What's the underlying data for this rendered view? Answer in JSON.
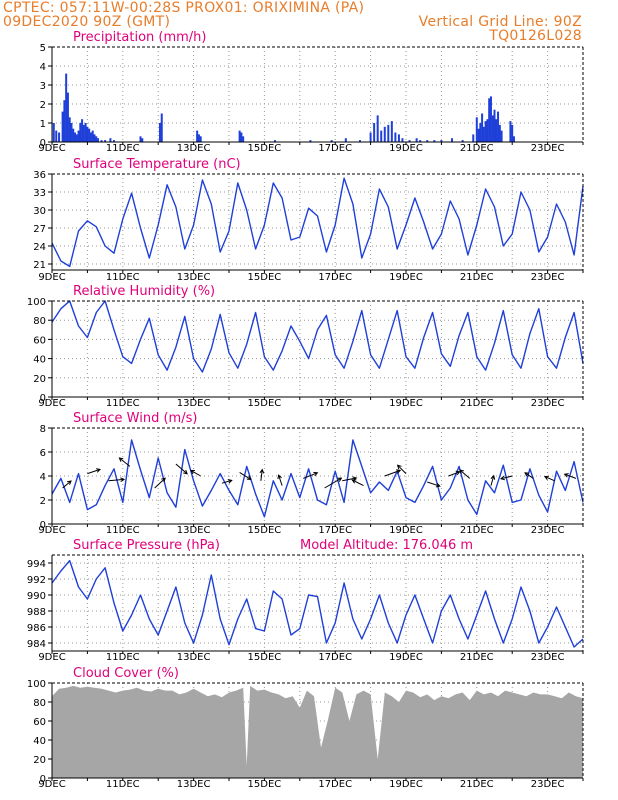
{
  "header": {
    "line1_left": "CPTEC:   057:11W-00:28S   PROX01: ORIXIMINA (PA)",
    "line2_left": "09DEC2020 90Z (GMT)",
    "line2_right": "Vertical Grid Line: 90Z",
    "line3_right": "TQ0126L028",
    "model_altitude": "Model Altitude: 176.046 m"
  },
  "colors": {
    "header": "#e87d2a",
    "panel_title": "#e0007a",
    "series": "#1f3fd9",
    "cloud": "#a6a6a6",
    "grid": "#9a9a9a"
  },
  "x_tick_labels": [
    "9DEC",
    "11DEC",
    "13DEC",
    "15DEC",
    "17DEC",
    "19DEC",
    "21DEC",
    "23DEC"
  ],
  "chart_data": [
    {
      "name": "precip",
      "type": "bar",
      "title": "Precipitation (mm/h)",
      "x_range_days": [
        9,
        24
      ],
      "ylim": [
        0,
        5
      ],
      "yticks": [
        0,
        1,
        2,
        3,
        4,
        5
      ],
      "grid": true,
      "x": [
        9.05,
        9.12,
        9.2,
        9.3,
        9.35,
        9.4,
        9.45,
        9.5,
        9.55,
        9.6,
        9.65,
        9.7,
        9.75,
        9.8,
        9.85,
        9.9,
        9.95,
        10.0,
        10.05,
        10.1,
        10.15,
        10.2,
        10.25,
        10.3,
        10.4,
        10.5,
        10.65,
        10.75,
        11.5,
        11.55,
        12.05,
        12.1,
        13.1,
        13.15,
        13.2,
        14.3,
        14.35,
        14.4,
        15.3,
        16.3,
        16.9,
        17.3,
        17.7,
        18.0,
        18.1,
        18.2,
        18.3,
        18.4,
        18.5,
        18.6,
        18.7,
        18.8,
        18.9,
        19.1,
        19.3,
        19.4,
        19.6,
        19.8,
        20.0,
        20.3,
        20.6,
        20.9,
        21.0,
        21.05,
        21.1,
        21.15,
        21.2,
        21.25,
        21.3,
        21.35,
        21.4,
        21.45,
        21.5,
        21.55,
        21.6,
        21.65,
        21.7,
        21.95,
        22.0,
        22.05
      ],
      "values": [
        1.0,
        0.6,
        0.5,
        1.6,
        2.2,
        3.6,
        2.6,
        1.3,
        1.0,
        0.7,
        0.5,
        0.4,
        0.6,
        1.0,
        1.2,
        0.9,
        1.0,
        0.8,
        0.7,
        0.5,
        0.6,
        0.4,
        0.3,
        0.2,
        0.1,
        0.1,
        0.2,
        0.1,
        0.3,
        0.2,
        1.0,
        1.5,
        0.6,
        0.4,
        0.3,
        0.6,
        0.5,
        0.3,
        0.1,
        0.1,
        0.1,
        0.2,
        0.1,
        0.5,
        1.0,
        1.4,
        0.6,
        0.8,
        0.9,
        1.1,
        0.5,
        0.4,
        0.2,
        0.1,
        0.2,
        0.1,
        0.1,
        0.1,
        0.1,
        0.2,
        0.1,
        0.4,
        1.3,
        0.7,
        1.0,
        1.5,
        0.8,
        1.1,
        1.2,
        2.3,
        2.4,
        1.4,
        1.7,
        1.2,
        1.6,
        0.9,
        0.6,
        1.1,
        0.9,
        0.3
      ]
    },
    {
      "name": "temp",
      "type": "line",
      "title": "Surface Temperature (nC)",
      "x_range_days": [
        9,
        24
      ],
      "ylim": [
        20,
        36
      ],
      "yticks": [
        21,
        24,
        27,
        30,
        33,
        36
      ],
      "grid": true,
      "x": [
        9.0,
        9.25,
        9.5,
        9.75,
        10.0,
        10.25,
        10.5,
        10.75,
        11.0,
        11.25,
        11.5,
        11.75,
        12.0,
        12.25,
        12.5,
        12.75,
        13.0,
        13.25,
        13.5,
        13.75,
        14.0,
        14.25,
        14.5,
        14.75,
        15.0,
        15.25,
        15.5,
        15.75,
        16.0,
        16.25,
        16.5,
        16.75,
        17.0,
        17.25,
        17.5,
        17.75,
        18.0,
        18.25,
        18.5,
        18.75,
        19.0,
        19.25,
        19.5,
        19.75,
        20.0,
        20.25,
        20.5,
        20.75,
        21.0,
        21.25,
        21.5,
        21.75,
        22.0,
        22.25,
        22.5,
        22.75,
        23.0,
        23.25,
        23.5,
        23.75,
        24.0
      ],
      "values": [
        24.5,
        21.5,
        20.6,
        26.5,
        28.2,
        27.2,
        24.0,
        22.8,
        28.5,
        32.8,
        27.0,
        22.0,
        27.5,
        34.2,
        30.5,
        23.5,
        27.5,
        35.0,
        31.0,
        23.0,
        26.5,
        34.5,
        30.0,
        23.5,
        27.5,
        34.5,
        32.0,
        25.0,
        25.5,
        30.3,
        29.0,
        23.0,
        27.5,
        35.3,
        31.0,
        22.0,
        26.0,
        33.5,
        30.5,
        23.5,
        27.5,
        32.0,
        28.0,
        23.5,
        26.0,
        31.5,
        28.5,
        22.5,
        27.5,
        33.5,
        30.5,
        24.0,
        26.0,
        33.0,
        30.0,
        23.0,
        25.5,
        31.0,
        28.0,
        22.5,
        34.0
      ]
    },
    {
      "name": "rh",
      "type": "line",
      "title": "Relative Humidity (%)",
      "x_range_days": [
        9,
        24
      ],
      "ylim": [
        0,
        100
      ],
      "yticks": [
        0,
        20,
        40,
        60,
        80,
        100
      ],
      "grid": true,
      "x": [
        9.0,
        9.25,
        9.5,
        9.75,
        10.0,
        10.25,
        10.5,
        10.75,
        11.0,
        11.25,
        11.5,
        11.75,
        12.0,
        12.25,
        12.5,
        12.75,
        13.0,
        13.25,
        13.5,
        13.75,
        14.0,
        14.25,
        14.5,
        14.75,
        15.0,
        15.25,
        15.5,
        15.75,
        16.0,
        16.25,
        16.5,
        16.75,
        17.0,
        17.25,
        17.5,
        17.75,
        18.0,
        18.25,
        18.5,
        18.75,
        19.0,
        19.25,
        19.5,
        19.75,
        20.0,
        20.25,
        20.5,
        20.75,
        21.0,
        21.25,
        21.5,
        21.75,
        22.0,
        22.25,
        22.5,
        22.75,
        23.0,
        23.25,
        23.5,
        23.75,
        24.0
      ],
      "values": [
        78,
        92,
        100,
        74,
        62,
        88,
        100,
        70,
        42,
        35,
        60,
        82,
        44,
        28,
        52,
        84,
        40,
        26,
        50,
        86,
        46,
        30,
        55,
        88,
        42,
        28,
        48,
        74,
        58,
        40,
        70,
        85,
        44,
        30,
        58,
        90,
        44,
        30,
        60,
        90,
        42,
        30,
        62,
        88,
        45,
        32,
        64,
        88,
        42,
        28,
        56,
        90,
        44,
        30,
        66,
        92,
        42,
        30,
        62,
        88,
        35
      ]
    },
    {
      "name": "wind",
      "type": "line",
      "title": "Surface Wind (m/s)",
      "x_range_days": [
        9,
        24
      ],
      "ylim": [
        0,
        8
      ],
      "yticks": [
        0,
        2,
        4,
        6,
        8
      ],
      "grid": true,
      "x": [
        9.0,
        9.25,
        9.5,
        9.75,
        10.0,
        10.25,
        10.5,
        10.75,
        11.0,
        11.25,
        11.5,
        11.75,
        12.0,
        12.25,
        12.5,
        12.75,
        13.0,
        13.25,
        13.5,
        13.75,
        14.0,
        14.25,
        14.5,
        14.75,
        15.0,
        15.25,
        15.5,
        15.75,
        16.0,
        16.25,
        16.5,
        16.75,
        17.0,
        17.25,
        17.5,
        17.75,
        18.0,
        18.25,
        18.5,
        18.75,
        19.0,
        19.25,
        19.5,
        19.75,
        20.0,
        20.25,
        20.5,
        20.75,
        21.0,
        21.25,
        21.5,
        21.75,
        22.0,
        22.25,
        22.5,
        22.75,
        23.0,
        23.25,
        23.5,
        23.75,
        24.0
      ],
      "values": [
        2.5,
        3.8,
        1.8,
        4.2,
        1.2,
        1.6,
        3.2,
        4.6,
        1.8,
        7.0,
        4.5,
        2.2,
        5.5,
        2.6,
        1.4,
        6.2,
        3.6,
        1.5,
        2.8,
        4.2,
        2.8,
        1.6,
        4.8,
        2.5,
        0.6,
        3.6,
        2.0,
        4.2,
        2.2,
        4.6,
        2.0,
        1.6,
        4.4,
        1.8,
        7.0,
        4.8,
        2.6,
        3.5,
        2.8,
        4.4,
        2.2,
        1.8,
        3.2,
        4.8,
        2.0,
        3.0,
        4.8,
        2.0,
        0.8,
        3.6,
        2.6,
        4.9,
        1.8,
        2.0,
        4.6,
        2.4,
        1.0,
        4.4,
        2.8,
        5.2,
        1.8
      ]
    },
    {
      "name": "wind_vectors",
      "type": "scatter",
      "x": [
        9.3,
        10.0,
        10.6,
        11.2,
        11.9,
        12.5,
        13.2,
        13.8,
        14.3,
        14.9,
        15.5,
        16.1,
        16.7,
        17.2,
        17.8,
        18.4,
        19.0,
        19.6,
        20.2,
        20.8,
        21.4,
        22.0,
        22.6,
        23.2,
        23.8
      ],
      "values": [
        3.0,
        4.2,
        3.6,
        4.8,
        3.0,
        5.0,
        4.0,
        3.4,
        4.3,
        3.6,
        3.2,
        3.8,
        3.0,
        3.6,
        3.2,
        4.0,
        4.2,
        3.5,
        4.0,
        3.8,
        3.2,
        4.0,
        3.8,
        3.6,
        3.8
      ],
      "u": [
        1.2,
        1.8,
        2.2,
        -1.5,
        1.5,
        1.6,
        -1.4,
        1.4,
        1.6,
        0.2,
        -0.5,
        2.0,
        2.4,
        2.0,
        -1.6,
        2.2,
        -1.2,
        1.8,
        1.6,
        -1.4,
        0.4,
        -1.6,
        -1.2,
        -1.4,
        -1.6
      ],
      "v": [
        1.0,
        0.6,
        0.2,
        1.2,
        1.4,
        -1.4,
        0.8,
        0.4,
        -1.0,
        1.6,
        1.5,
        0.8,
        1.4,
        0.4,
        0.8,
        0.8,
        1.2,
        -0.6,
        0.6,
        1.2,
        1.4,
        -0.4,
        0.8,
        0.6,
        0.6
      ]
    },
    {
      "name": "pres",
      "type": "line",
      "title": "Surface Pressure (hPa)",
      "x_range_days": [
        9,
        24
      ],
      "ylim": [
        983,
        995
      ],
      "yticks": [
        984,
        986,
        988,
        990,
        992,
        994
      ],
      "grid": true,
      "x": [
        9.0,
        9.25,
        9.5,
        9.75,
        10.0,
        10.25,
        10.5,
        10.75,
        11.0,
        11.25,
        11.5,
        11.75,
        12.0,
        12.25,
        12.5,
        12.75,
        13.0,
        13.25,
        13.5,
        13.75,
        14.0,
        14.25,
        14.5,
        14.75,
        15.0,
        15.25,
        15.5,
        15.75,
        16.0,
        16.25,
        16.5,
        16.75,
        17.0,
        17.25,
        17.5,
        17.75,
        18.0,
        18.25,
        18.5,
        18.75,
        19.0,
        19.25,
        19.5,
        19.75,
        20.0,
        20.25,
        20.5,
        20.75,
        21.0,
        21.25,
        21.5,
        21.75,
        22.0,
        22.25,
        22.5,
        22.75,
        23.0,
        23.25,
        23.5,
        23.75,
        24.0
      ],
      "values": [
        991.5,
        993.0,
        994.3,
        991.0,
        989.5,
        992.0,
        993.4,
        989.0,
        985.5,
        987.5,
        990.0,
        987.0,
        985.0,
        988.0,
        991.0,
        986.5,
        984.0,
        987.5,
        992.5,
        987.0,
        983.8,
        987.0,
        989.5,
        985.8,
        985.5,
        990.5,
        989.5,
        985.0,
        985.8,
        990.0,
        989.8,
        984.0,
        986.5,
        991.5,
        987.0,
        984.5,
        987.0,
        990.0,
        986.5,
        984.0,
        987.5,
        990.0,
        987.0,
        984.0,
        988.0,
        990.0,
        987.0,
        984.5,
        987.5,
        990.5,
        987.0,
        984.0,
        987.0,
        991.0,
        988.0,
        984.0,
        986.0,
        988.5,
        986.0,
        983.5,
        984.5
      ]
    },
    {
      "name": "cloud",
      "type": "area",
      "title": "Cloud Cover (%)",
      "x_range_days": [
        9,
        24
      ],
      "ylim": [
        0,
        100
      ],
      "yticks": [
        0,
        20,
        40,
        60,
        80,
        100
      ],
      "grid": true,
      "x": [
        9.0,
        9.2,
        9.4,
        9.6,
        9.8,
        10.0,
        10.2,
        10.4,
        10.6,
        10.8,
        11.0,
        11.2,
        11.4,
        11.6,
        11.8,
        12.0,
        12.2,
        12.4,
        12.6,
        12.8,
        13.0,
        13.2,
        13.4,
        13.6,
        13.8,
        14.0,
        14.2,
        14.4,
        14.5,
        14.6,
        14.8,
        15.0,
        15.2,
        15.4,
        15.6,
        15.8,
        16.0,
        16.2,
        16.4,
        16.6,
        16.8,
        17.0,
        17.2,
        17.4,
        17.6,
        17.8,
        18.0,
        18.2,
        18.4,
        18.6,
        18.8,
        19.0,
        19.2,
        19.4,
        19.6,
        19.8,
        20.0,
        20.2,
        20.4,
        20.6,
        20.8,
        21.0,
        21.2,
        21.4,
        21.6,
        21.8,
        22.0,
        22.2,
        22.4,
        22.6,
        22.8,
        23.0,
        23.2,
        23.4,
        23.6,
        23.8,
        24.0
      ],
      "values": [
        86,
        94,
        95,
        97,
        95,
        96,
        95,
        94,
        92,
        90,
        92,
        93,
        95,
        92,
        91,
        94,
        92,
        92,
        88,
        90,
        94,
        90,
        86,
        88,
        85,
        90,
        92,
        95,
        13,
        97,
        92,
        93,
        90,
        88,
        84,
        86,
        74,
        92,
        86,
        32,
        62,
        95,
        90,
        60,
        88,
        92,
        88,
        20,
        90,
        86,
        80,
        92,
        90,
        85,
        88,
        82,
        86,
        84,
        88,
        90,
        82,
        92,
        88,
        90,
        86,
        92,
        90,
        88,
        86,
        90,
        88,
        88,
        86,
        84,
        90,
        86,
        84
      ]
    }
  ]
}
